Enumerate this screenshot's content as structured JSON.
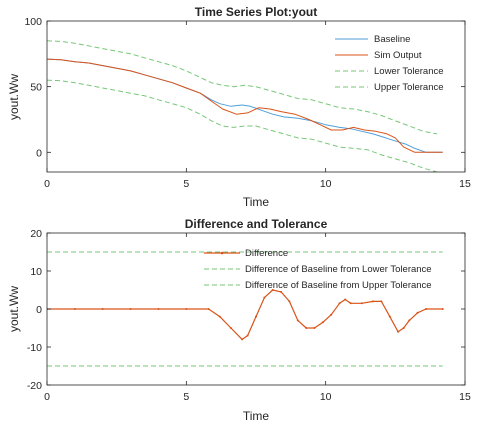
{
  "chart_data": [
    {
      "type": "line",
      "title": "Time Series Plot:yout",
      "xlabel": "Time",
      "ylabel": "yout.Ww",
      "xlim": [
        0,
        15
      ],
      "ylim": [
        -15,
        100
      ],
      "xticks": [
        0,
        5,
        10,
        15
      ],
      "yticks": [
        0,
        50,
        100
      ],
      "grid": false,
      "legend": "top-right",
      "series": [
        {
          "name": "Baseline",
          "color": "#4f9fd9",
          "dash": "solid",
          "x": [
            0,
            0.5,
            1,
            1.5,
            2,
            2.5,
            3,
            3.5,
            4,
            4.5,
            5,
            5.5,
            5.9,
            6.2,
            6.6,
            7.0,
            7.3,
            7.7,
            8.1,
            8.5,
            9.0,
            9.5,
            10.0,
            10.5,
            10.9,
            11.3,
            11.7,
            12.0,
            12.3,
            12.6,
            12.9,
            13.2,
            13.6,
            14.2
          ],
          "y": [
            71,
            70.5,
            69,
            68,
            66,
            64,
            62,
            59,
            56,
            53,
            49,
            45,
            40,
            37,
            35,
            36,
            35,
            32,
            29,
            27,
            26,
            24,
            21,
            19,
            18,
            16,
            14,
            12,
            10,
            8,
            6,
            3,
            0,
            0
          ]
        },
        {
          "name": "Sim Output",
          "color": "#d95319",
          "dash": "solid",
          "x": [
            0,
            0.5,
            1,
            1.5,
            2,
            2.5,
            3,
            3.5,
            4,
            4.5,
            5,
            5.5,
            5.9,
            6.3,
            6.8,
            7.2,
            7.6,
            8.0,
            8.4,
            8.9,
            9.4,
            9.8,
            10.2,
            10.6,
            11.0,
            11.4,
            11.8,
            12.2,
            12.5,
            12.8,
            13.2,
            14.2
          ],
          "y": [
            71,
            70.5,
            69,
            68,
            66,
            64,
            62,
            59,
            56,
            53,
            49,
            45,
            39,
            33,
            29,
            30,
            34,
            33,
            31,
            29,
            25,
            21,
            17,
            17,
            19,
            17,
            16,
            14,
            11,
            4,
            0,
            0
          ]
        },
        {
          "name": "Lower Tolerance",
          "color": "#77c777",
          "dash": "dashed",
          "x": [
            0,
            0.5,
            1,
            1.5,
            2,
            2.5,
            3,
            3.5,
            4,
            4.5,
            5,
            5.5,
            5.9,
            6.3,
            6.7,
            7.1,
            7.5,
            8.0,
            8.5,
            9.0,
            9.5,
            10.0,
            10.5,
            11.0,
            11.5,
            12.0,
            12.5,
            13.0,
            13.5,
            14.0
          ],
          "y": [
            55,
            54.5,
            53,
            51,
            49,
            47,
            45,
            43,
            40,
            37,
            34,
            29,
            24,
            20,
            19,
            20,
            20,
            17,
            14,
            11,
            10,
            7,
            4,
            3,
            2,
            -2,
            -5,
            -8,
            -12,
            -15
          ]
        },
        {
          "name": "Upper Tolerance",
          "color": "#77c777",
          "dash": "dashed",
          "x": [
            0,
            0.5,
            1,
            1.5,
            2,
            2.5,
            3,
            3.5,
            4,
            4.5,
            5,
            5.5,
            5.9,
            6.3,
            6.7,
            7.1,
            7.5,
            8.0,
            8.5,
            9.0,
            9.5,
            10.0,
            10.5,
            11.0,
            11.5,
            12.0,
            12.5,
            13.0,
            13.5,
            14.0
          ],
          "y": [
            85,
            84.5,
            83,
            81,
            79,
            77,
            75,
            72,
            69,
            66,
            62,
            57,
            53,
            51,
            50,
            51,
            50,
            47,
            44,
            41,
            40,
            37,
            34,
            33,
            31,
            28,
            24,
            20,
            16,
            14
          ]
        }
      ]
    },
    {
      "type": "line",
      "title": "Difference and Tolerance",
      "xlabel": "Time",
      "ylabel": "yout.Ww",
      "xlim": [
        0,
        15
      ],
      "ylim": [
        -20,
        20
      ],
      "xticks": [
        0,
        5,
        10,
        15
      ],
      "yticks": [
        -20,
        -10,
        0,
        10,
        20
      ],
      "grid": false,
      "legend": "top",
      "series": [
        {
          "name": "Difference",
          "color": "#d95319",
          "dash": "solid",
          "marker": "dot",
          "x": [
            0,
            1,
            2,
            3,
            4,
            5,
            5.8,
            6.2,
            6.6,
            7.0,
            7.2,
            7.5,
            7.8,
            8.1,
            8.4,
            8.7,
            9.0,
            9.3,
            9.6,
            9.9,
            10.2,
            10.5,
            10.7,
            10.9,
            11.3,
            11.7,
            12.0,
            12.3,
            12.6,
            12.8,
            13.0,
            13.3,
            13.6,
            14.2
          ],
          "y": [
            0,
            0,
            0,
            0,
            0,
            0,
            0,
            -2,
            -5,
            -8,
            -7,
            -2,
            3,
            5,
            4.5,
            2,
            -3,
            -5,
            -5,
            -3.5,
            -1.5,
            1.5,
            2.5,
            1.5,
            1.5,
            2,
            2,
            -2,
            -6,
            -5,
            -3,
            -1,
            0,
            0
          ]
        },
        {
          "name": "Difference of Baseline from Lower Tolerance",
          "color": "#77c777",
          "dash": "dashed",
          "x": [
            0,
            14.2
          ],
          "y": [
            15,
            15
          ]
        },
        {
          "name": "Difference of Baseline from Upper Tolerance",
          "color": "#77c777",
          "dash": "dashed",
          "x": [
            0,
            14.2
          ],
          "y": [
            -15,
            -15
          ]
        }
      ]
    }
  ]
}
